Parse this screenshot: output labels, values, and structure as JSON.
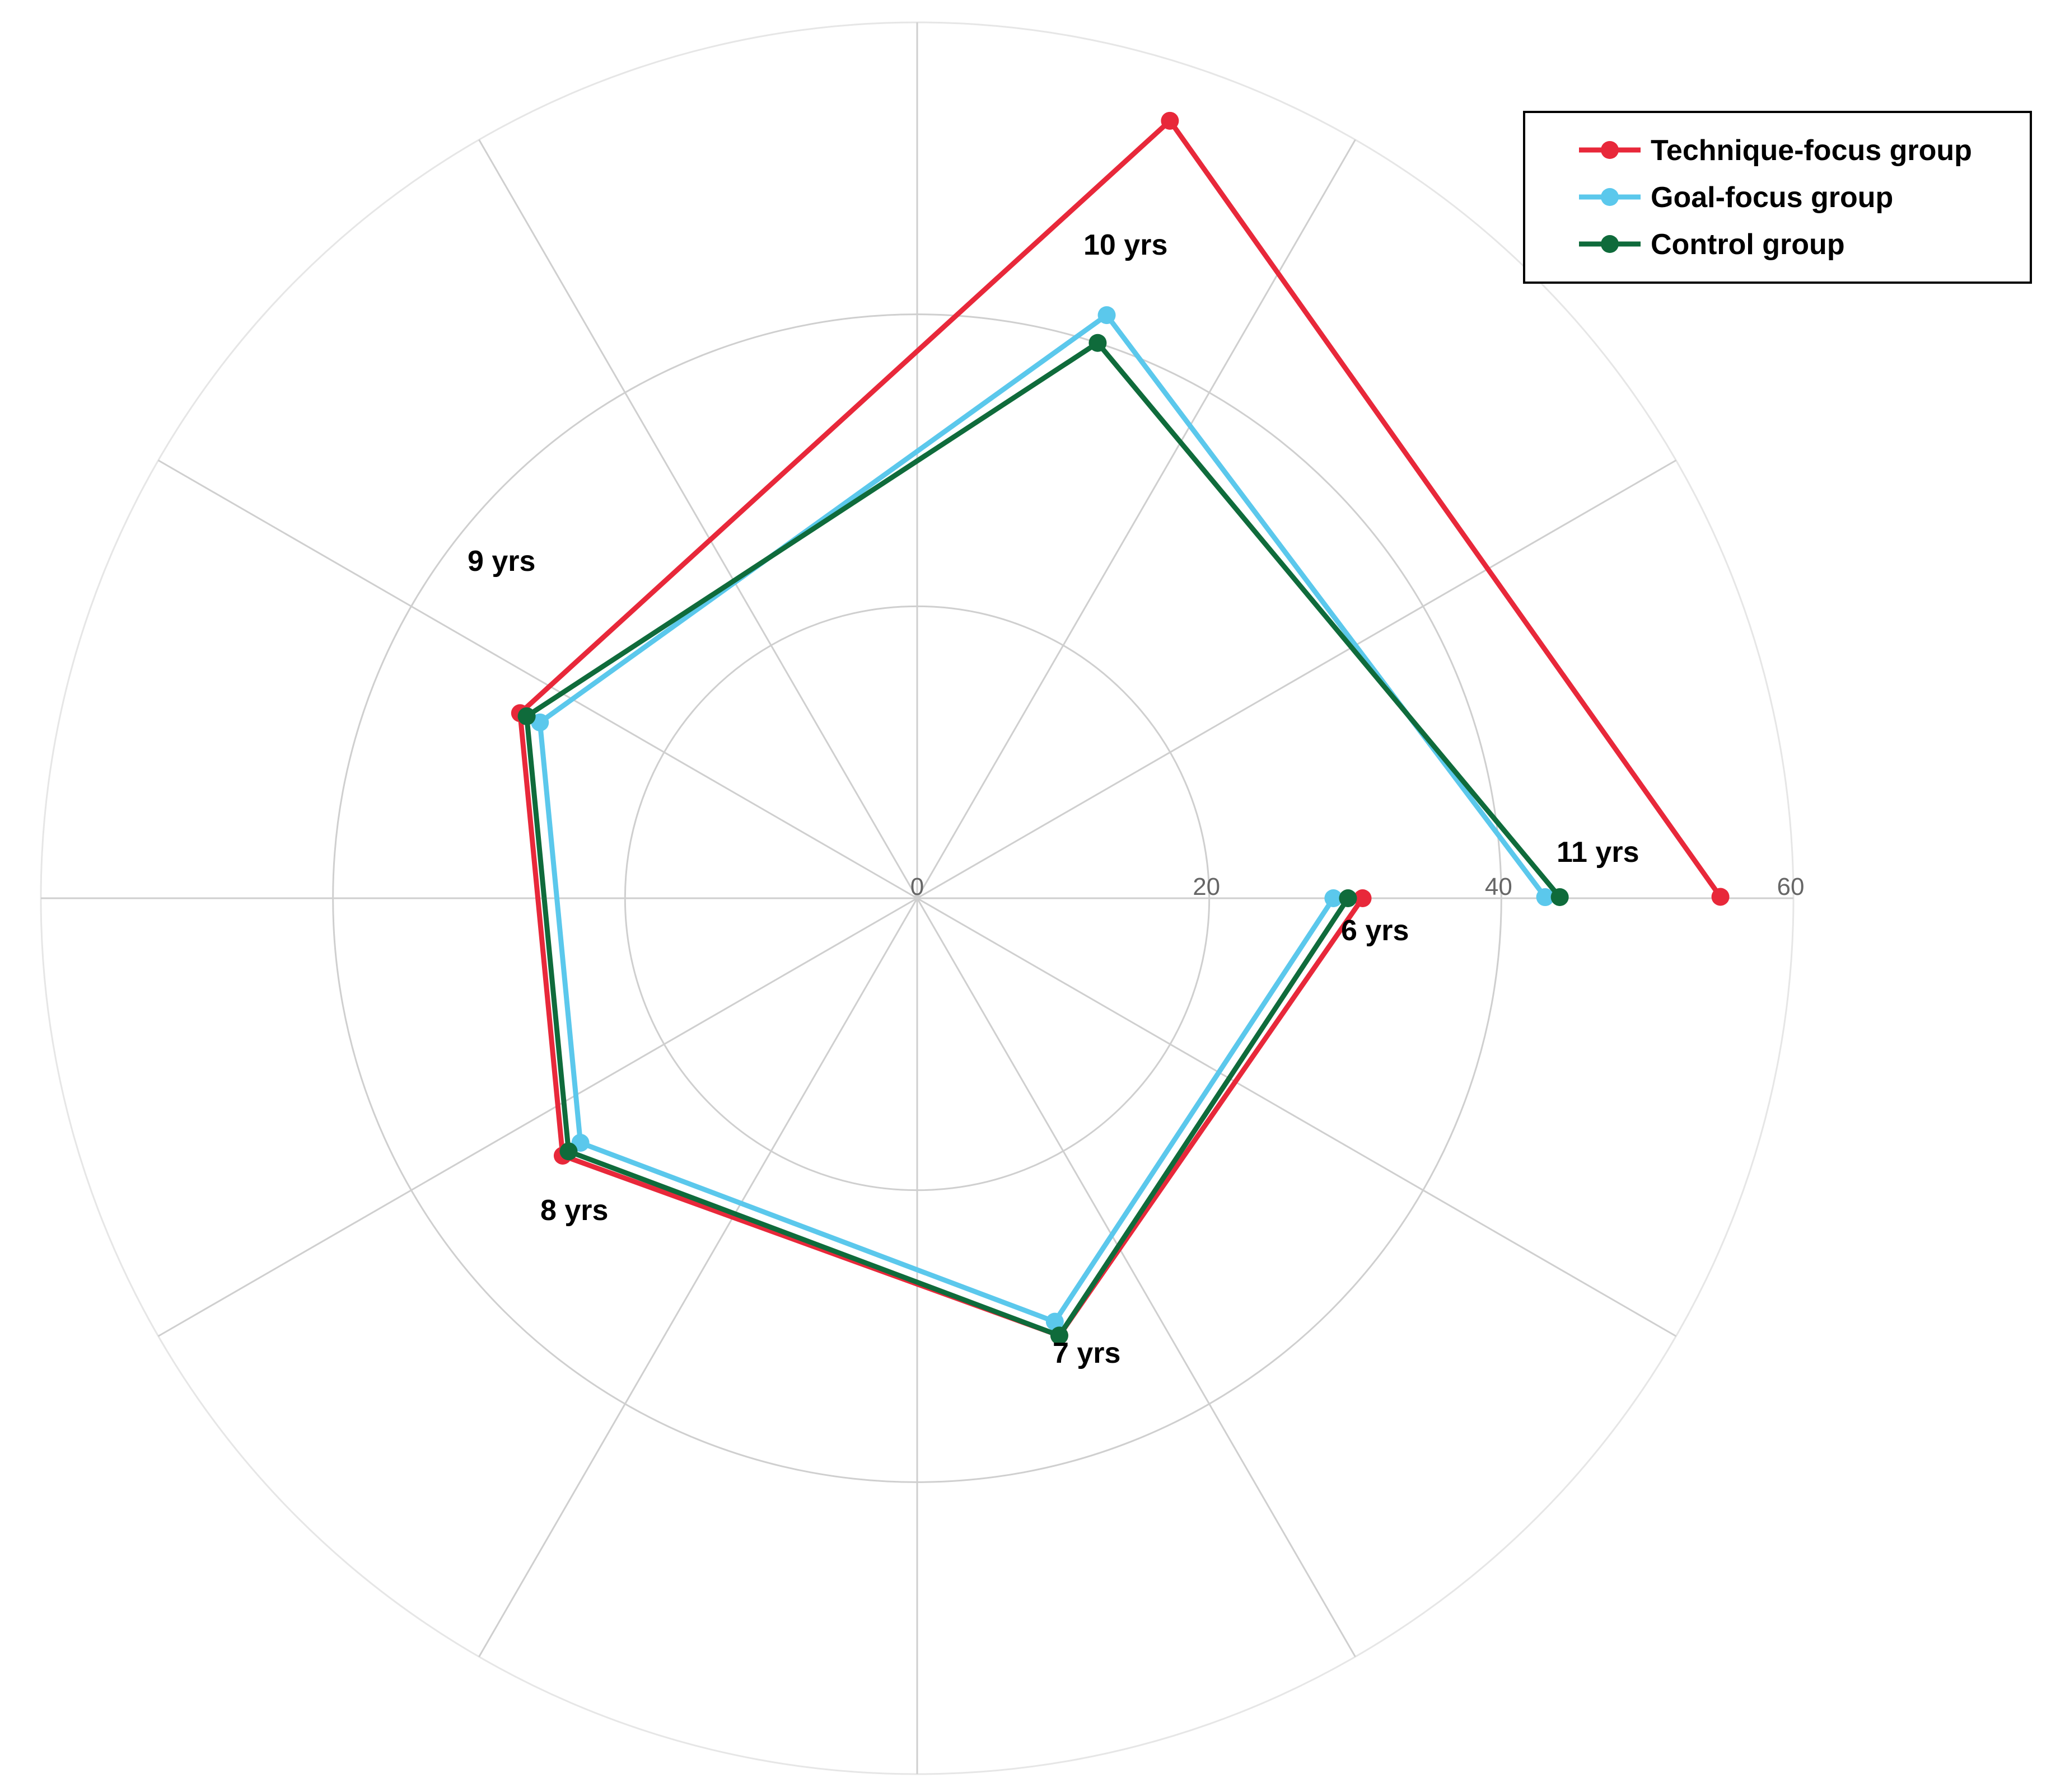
{
  "chart_data": {
    "type": "radar",
    "categories": [
      "6 yrs",
      "7 yrs",
      "8 yrs",
      "9 yrs",
      "10 yrs",
      "11 yrs"
    ],
    "radial_ticks": [
      0,
      20,
      40,
      60
    ],
    "rlim": [
      0,
      60
    ],
    "grid": true,
    "legend_position": "top-right",
    "series": [
      {
        "name": "Technique-focus group",
        "color": "#e8283a",
        "values": [
          30.5,
          31.5,
          30,
          30,
          56,
          55
        ]
      },
      {
        "name": "Goal-focus group",
        "color": "#5bc8ec",
        "values": [
          28.5,
          30.5,
          28.5,
          28.5,
          42,
          43
        ]
      },
      {
        "name": "Control group",
        "color": "#0f6b3b",
        "values": [
          29.5,
          31.5,
          29.5,
          29.5,
          40,
          44
        ]
      }
    ]
  }
}
